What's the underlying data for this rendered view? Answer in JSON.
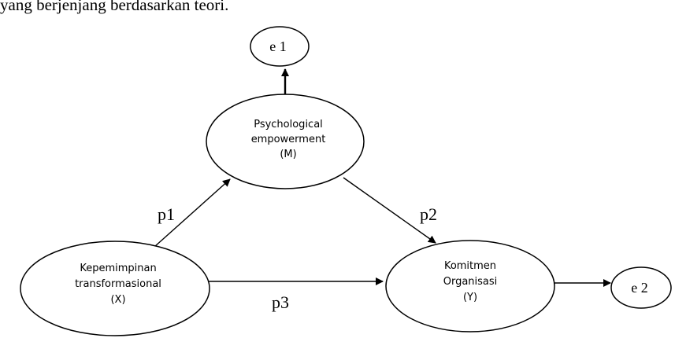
{
  "caption": "yang berjenjang berdasarkan teori.",
  "nodes": {
    "mediator": {
      "line1": "Psychological",
      "line2": "empowerment",
      "line3": "(M)"
    },
    "independent": {
      "line1": "Kepemimpinan",
      "line2": "transformasional",
      "line3": "(X)"
    },
    "dependent": {
      "line1": "Komitmen",
      "line2": "Organisasi",
      "line3": "(Y)"
    },
    "error1": "e 1",
    "error2": "e 2"
  },
  "paths": {
    "p1": "p1",
    "p2": "p2",
    "p3": "p3"
  }
}
